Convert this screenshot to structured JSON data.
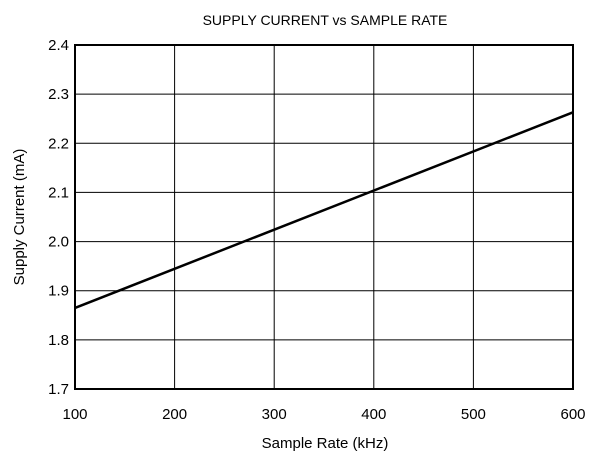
{
  "chart_data": {
    "type": "line",
    "title": "SUPPLY CURRENT vs SAMPLE RATE",
    "xlabel": "Sample Rate (kHz)",
    "ylabel": "Supply Current (mA)",
    "xlim": [
      100,
      600
    ],
    "ylim": [
      1.7,
      2.4
    ],
    "xticks": [
      "100",
      "200",
      "300",
      "400",
      "500",
      "600"
    ],
    "yticks": [
      "1.7",
      "1.8",
      "1.9",
      "2.0",
      "2.1",
      "2.2",
      "2.3",
      "2.4"
    ],
    "grid": true,
    "series": [
      {
        "x": [
          100,
          600
        ],
        "y": [
          1.865,
          2.263
        ]
      }
    ]
  }
}
